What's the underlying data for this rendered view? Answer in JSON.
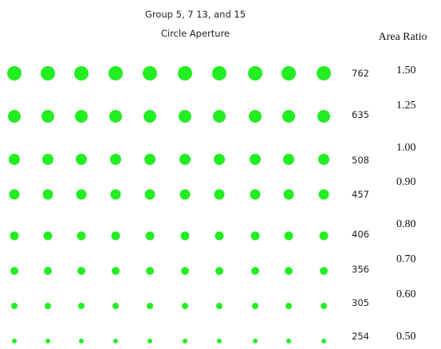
{
  "title": {
    "line1": "Group 5, 7 13, and 15",
    "line2": "Circle Aperture"
  },
  "column_header": "Area Ratio",
  "rows": [
    {
      "size": "762",
      "ratio": "1.50"
    },
    {
      "size": "635",
      "ratio": "1.25"
    },
    {
      "size": "508",
      "ratio": "1.00"
    },
    {
      "size": "457",
      "ratio": "0.90"
    },
    {
      "size": "406",
      "ratio": "0.80"
    },
    {
      "size": "356",
      "ratio": "0.70"
    },
    {
      "size": "305",
      "ratio": "0.60"
    },
    {
      "size": "254",
      "ratio": "0.50"
    }
  ]
}
